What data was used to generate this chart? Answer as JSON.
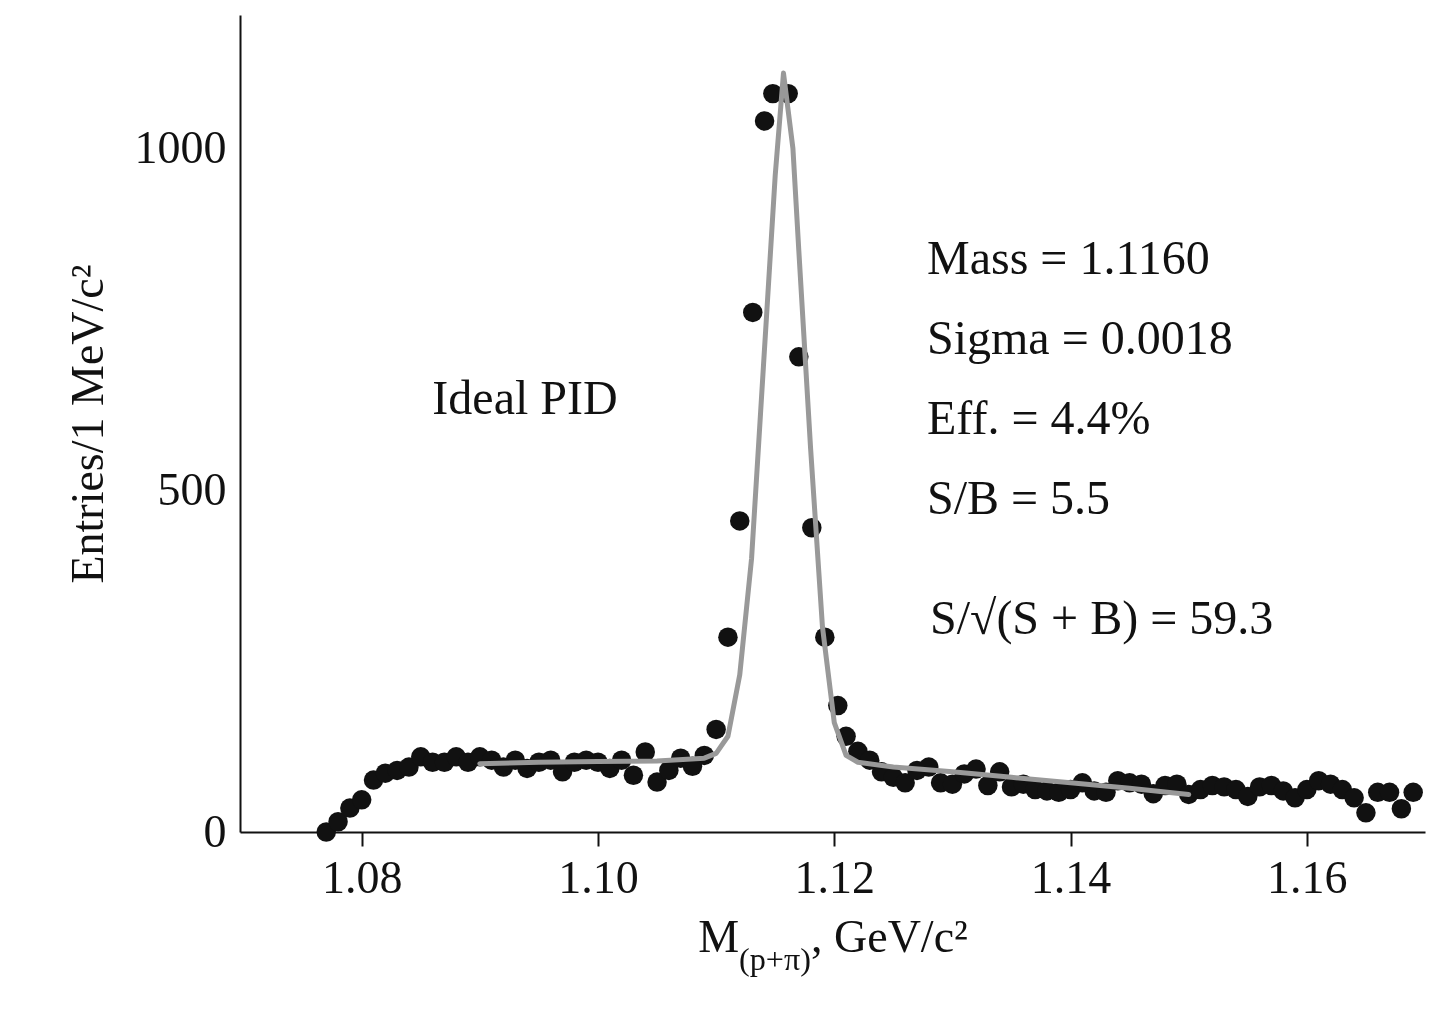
{
  "chart_data": {
    "type": "scatter",
    "xlabel": "M$_{(p+π)}$, GeV/c²",
    "ylabel": "Entries/1 MeV/c²",
    "xlim": [
      1.0697,
      1.17
    ],
    "ylim": [
      0,
      1195
    ],
    "xticks": [
      1.08,
      {
        "value": 1.1,
        "label": "1.10"
      },
      1.12,
      1.14,
      1.16
    ],
    "yticks": [
      0,
      500,
      1000
    ],
    "grid": false,
    "marker": "circle",
    "series": [
      {
        "color": "#111111",
        "x": [
          1.077,
          1.078,
          1.079,
          1.08,
          1.081,
          1.082,
          1.083,
          1.084,
          1.085,
          1.086,
          1.087,
          1.088,
          1.089,
          1.09,
          1.091,
          1.092,
          1.093,
          1.094,
          1.095,
          1.096,
          1.097,
          1.098,
          1.099,
          1.1,
          1.101,
          1.102,
          1.103,
          1.104,
          1.105,
          1.106,
          1.107,
          1.108,
          1.109,
          1.11,
          1.111,
          1.112,
          1.1131,
          1.1141,
          1.1148,
          1.1161,
          1.117,
          1.1181,
          1.1192,
          1.1203,
          1.121,
          1.122,
          1.123,
          1.124,
          1.125,
          1.126,
          1.127,
          1.128,
          1.129,
          1.13,
          1.131,
          1.132,
          1.133,
          1.134,
          1.135,
          1.136,
          1.137,
          1.138,
          1.139,
          1.14,
          1.141,
          1.142,
          1.143,
          1.144,
          1.145,
          1.146,
          1.147,
          1.148,
          1.149,
          1.15,
          1.151,
          1.152,
          1.153,
          1.154,
          1.155,
          1.156,
          1.157,
          1.158,
          1.159,
          1.16,
          1.161,
          1.162,
          1.163,
          1.164,
          1.165,
          1.166,
          1.167,
          1.168,
          1.169
        ],
        "values": [
          0,
          15,
          35,
          47,
          76,
          86,
          90,
          95,
          110,
          102,
          102,
          110,
          102,
          110,
          105,
          95,
          105,
          93,
          102,
          105,
          88,
          102,
          105,
          102,
          93,
          105,
          83,
          117,
          73,
          90,
          108,
          96,
          112,
          150,
          285,
          455,
          760,
          1040,
          1080,
          1080,
          695,
          445,
          285,
          185,
          140,
          118,
          105,
          88,
          80,
          72,
          90,
          95,
          72,
          70,
          85,
          92,
          68,
          88,
          66,
          70,
          62,
          60,
          58,
          62,
          72,
          60,
          58,
          75,
          72,
          70,
          56,
          68,
          70,
          55,
          62,
          68,
          66,
          62,
          52,
          66,
          68,
          60,
          50,
          62,
          75,
          70,
          62,
          50,
          28,
          58,
          58,
          34,
          58
        ]
      },
      {
        "type": "line",
        "marker": "none",
        "color": "#999999",
        "x": [
          1.09,
          1.095,
          1.1,
          1.105,
          1.109,
          1.11,
          1.111,
          1.112,
          1.113,
          1.114,
          1.115,
          1.1157,
          1.1165,
          1.117,
          1.118,
          1.119,
          1.12,
          1.121,
          1.122,
          1.125,
          1.13,
          1.135,
          1.14,
          1.145,
          1.15
        ],
        "values": [
          100,
          102,
          103,
          104,
          108,
          115,
          140,
          230,
          400,
          680,
          960,
          1110,
          1000,
          850,
          560,
          300,
          160,
          112,
          102,
          95,
          88,
          80,
          72,
          64,
          55
        ]
      }
    ],
    "annotations": [
      "Ideal PID",
      "Mass = 1.1160",
      "Sigma = 0.0018",
      "Eff. = 4.4%",
      "S/B = 5.5",
      "S/√(S + B) = 59.3"
    ]
  }
}
